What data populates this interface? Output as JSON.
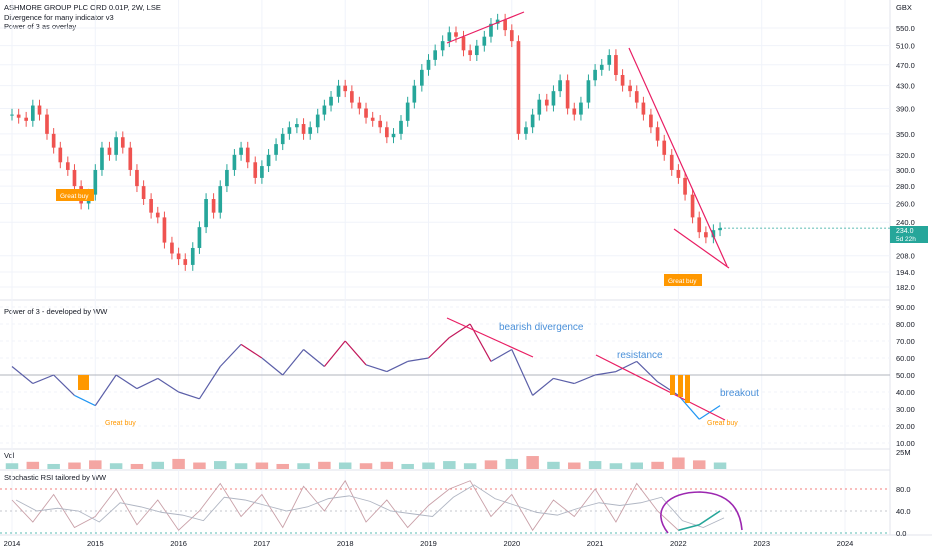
{
  "header": {
    "title": "ASHMORE GROUP PLC ORD 0.01P, 2W, LSE",
    "indicator1": "Divergence for many indicator v3",
    "indicator2": "Power of 3 as overlay",
    "currency": "GBX"
  },
  "price_label": {
    "value": "234.0",
    "countdown": "5d 22h"
  },
  "annotations": {
    "great_buy_1": "Great buy",
    "great_buy_2": "Great buy",
    "great_buy_osc_1": "Great buy",
    "great_buy_osc_2": "Great buy",
    "bearish_divergence": "bearish divergence",
    "resistance": "resistance",
    "breakout": "breakout"
  },
  "panes": {
    "power_title": "Power of 3 - developed by WW",
    "volume_title": "Vol",
    "stoch_title": "Stochastic RSI tailored by WW"
  },
  "colors": {
    "up": "#26a69a",
    "down": "#ef5350",
    "trendline": "#e91e63",
    "callout": "#ff9800",
    "osc_line": "#5b5fa8",
    "osc_high": "#c2185b",
    "osc_low": "#2196f3",
    "annotation_blue": "#4a90d9",
    "circle": "#9c27b0",
    "price_tag": "#26a69a"
  },
  "chart_data": [
    {
      "type": "candlestick",
      "name": "price",
      "x_ticks": [
        "2014",
        "2015",
        "2016",
        "2017",
        "2018",
        "2019",
        "2020",
        "2021",
        "2022",
        "2023",
        "2024"
      ],
      "y_ticks": [
        550.0,
        510.0,
        470.0,
        430.0,
        390.0,
        350.0,
        320.0,
        300.0,
        280.0,
        260.0,
        240.0,
        208.0,
        194.0,
        182.0
      ],
      "x": [
        2014.0,
        2014.08,
        2014.17,
        2014.25,
        2014.33,
        2014.42,
        2014.5,
        2014.58,
        2014.67,
        2014.75,
        2014.83,
        2014.92,
        2015.0,
        2015.08,
        2015.17,
        2015.25,
        2015.33,
        2015.42,
        2015.5,
        2015.58,
        2015.67,
        2015.75,
        2015.83,
        2015.92,
        2016.0,
        2016.08,
        2016.17,
        2016.25,
        2016.33,
        2016.42,
        2016.5,
        2016.58,
        2016.67,
        2016.75,
        2016.83,
        2016.92,
        2017.0,
        2017.08,
        2017.17,
        2017.25,
        2017.33,
        2017.42,
        2017.5,
        2017.58,
        2017.67,
        2017.75,
        2017.83,
        2017.92,
        2018.0,
        2018.08,
        2018.17,
        2018.25,
        2018.33,
        2018.42,
        2018.5,
        2018.58,
        2018.67,
        2018.75,
        2018.83,
        2018.92,
        2019.0,
        2019.08,
        2019.17,
        2019.25,
        2019.33,
        2019.42,
        2019.5,
        2019.58,
        2019.67,
        2019.75,
        2019.83,
        2019.92,
        2020.0,
        2020.08,
        2020.17,
        2020.25,
        2020.33,
        2020.42,
        2020.5,
        2020.58,
        2020.67,
        2020.75,
        2020.83,
        2020.92,
        2021.0,
        2021.08,
        2021.17,
        2021.25,
        2021.33,
        2021.42,
        2021.5,
        2021.58,
        2021.67,
        2021.75,
        2021.83,
        2021.92,
        2022.0,
        2022.08,
        2022.17,
        2022.25,
        2022.33,
        2022.42,
        2022.5
      ],
      "close": [
        380,
        375,
        370,
        395,
        380,
        350,
        330,
        310,
        300,
        280,
        260,
        270,
        300,
        330,
        320,
        345,
        330,
        300,
        280,
        265,
        250,
        245,
        220,
        210,
        205,
        200,
        215,
        235,
        265,
        250,
        280,
        300,
        320,
        330,
        310,
        290,
        305,
        320,
        335,
        350,
        360,
        365,
        350,
        360,
        380,
        395,
        410,
        430,
        420,
        400,
        390,
        375,
        370,
        360,
        345,
        350,
        370,
        400,
        430,
        460,
        480,
        500,
        520,
        540,
        530,
        500,
        490,
        510,
        530,
        560,
        570,
        545,
        520,
        350,
        360,
        380,
        405,
        395,
        420,
        440,
        390,
        380,
        400,
        440,
        460,
        470,
        490,
        450,
        430,
        420,
        400,
        380,
        360,
        340,
        320,
        300,
        290,
        270,
        245,
        230,
        225,
        232,
        234
      ]
    },
    {
      "type": "line",
      "name": "power-of-3",
      "y_ticks": [
        90.0,
        80.0,
        70.0,
        60.0,
        50.0,
        40.0,
        30.0,
        20.0,
        10.0
      ],
      "x": [
        2014.0,
        2014.25,
        2014.5,
        2014.75,
        2015.0,
        2015.25,
        2015.5,
        2015.75,
        2016.0,
        2016.25,
        2016.5,
        2016.75,
        2017.0,
        2017.25,
        2017.5,
        2017.75,
        2018.0,
        2018.25,
        2018.5,
        2018.75,
        2019.0,
        2019.25,
        2019.5,
        2019.75,
        2020.0,
        2020.25,
        2020.5,
        2020.75,
        2021.0,
        2021.25,
        2021.5,
        2021.75,
        2022.0,
        2022.25,
        2022.5
      ],
      "y": [
        55,
        45,
        50,
        38,
        32,
        50,
        42,
        48,
        40,
        36,
        55,
        68,
        60,
        50,
        65,
        55,
        70,
        56,
        52,
        58,
        60,
        72,
        80,
        58,
        65,
        38,
        48,
        45,
        50,
        52,
        58,
        46,
        38,
        24,
        32
      ]
    },
    {
      "type": "bar",
      "name": "volume",
      "y_ticks": [
        "25M"
      ],
      "x": [
        2014.0,
        2014.25,
        2014.5,
        2014.75,
        2015.0,
        2015.25,
        2015.5,
        2015.75,
        2016.0,
        2016.25,
        2016.5,
        2016.75,
        2017.0,
        2017.25,
        2017.5,
        2017.75,
        2018.0,
        2018.25,
        2018.5,
        2018.75,
        2019.0,
        2019.25,
        2019.5,
        2019.75,
        2020.0,
        2020.25,
        2020.5,
        2020.75,
        2021.0,
        2021.25,
        2021.5,
        2021.75,
        2022.0,
        2022.25,
        2022.5
      ],
      "values": [
        8,
        10,
        7,
        9,
        12,
        8,
        7,
        10,
        14,
        9,
        11,
        8,
        9,
        7,
        8,
        10,
        9,
        8,
        10,
        7,
        9,
        11,
        8,
        12,
        14,
        18,
        10,
        9,
        11,
        8,
        9,
        10,
        16,
        12,
        9
      ]
    },
    {
      "type": "line",
      "name": "stochastic-rsi",
      "y_ticks": [
        80.0,
        40.0,
        0.0
      ],
      "x": [
        2014.0,
        2014.25,
        2014.5,
        2014.75,
        2015.0,
        2015.25,
        2015.5,
        2015.75,
        2016.0,
        2016.25,
        2016.5,
        2016.75,
        2017.0,
        2017.25,
        2017.5,
        2017.75,
        2018.0,
        2018.25,
        2018.5,
        2018.75,
        2019.0,
        2019.25,
        2019.5,
        2019.75,
        2020.0,
        2020.25,
        2020.5,
        2020.75,
        2021.0,
        2021.25,
        2021.5,
        2021.75,
        2022.0,
        2022.25,
        2022.5
      ],
      "y": [
        60,
        20,
        70,
        10,
        30,
        80,
        15,
        60,
        5,
        40,
        90,
        30,
        70,
        10,
        85,
        40,
        95,
        20,
        60,
        10,
        50,
        80,
        95,
        30,
        70,
        5,
        60,
        30,
        80,
        20,
        90,
        40,
        5,
        15,
        40
      ]
    }
  ]
}
